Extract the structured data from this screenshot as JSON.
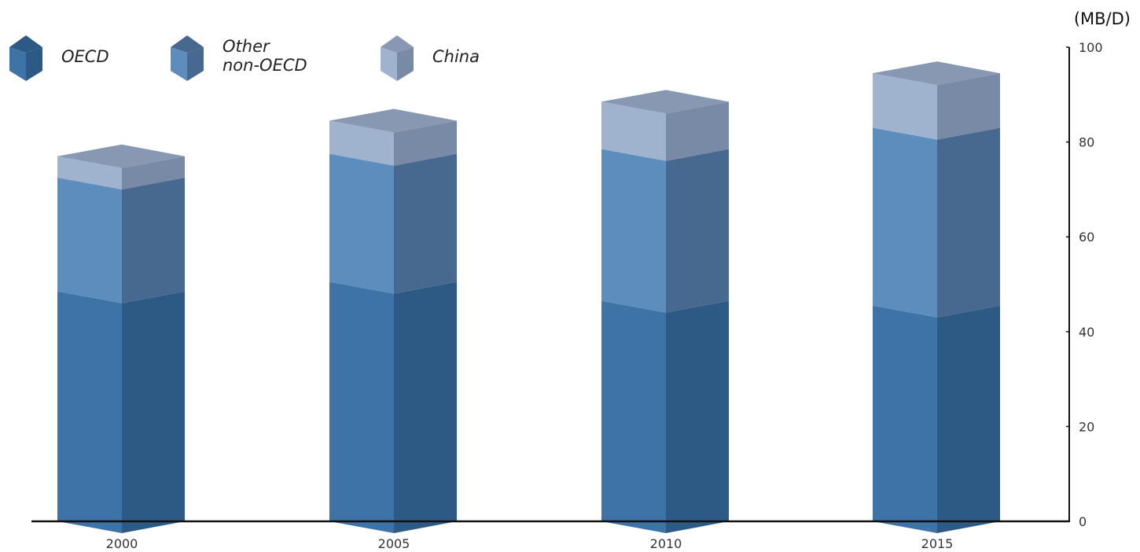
{
  "chart_data": {
    "type": "bar",
    "stacked": true,
    "style": "3d-isometric-columns",
    "categories": [
      "2000",
      "2005",
      "2010",
      "2015"
    ],
    "series": [
      {
        "name": "OECD",
        "values": [
          48.5,
          50.5,
          46.5,
          45.5
        ]
      },
      {
        "name": "Other non-OECD",
        "values": [
          24,
          27,
          32,
          37.5
        ]
      },
      {
        "name": "China",
        "values": [
          4.5,
          7,
          10,
          11.5
        ]
      }
    ],
    "y_unit": "(MB/D)",
    "ylim": [
      0,
      100
    ],
    "yticks": [
      "0",
      "20",
      "40",
      "60",
      "80",
      "100"
    ],
    "y_axis_side": "right",
    "legend_position": "top-left",
    "grid": false,
    "colors": {
      "OECD": {
        "front": "#3d73a6",
        "side": "#2c5a84"
      },
      "Other non-OECD": {
        "front": "#5d8dbd",
        "side": "#48698f"
      },
      "China": {
        "front": "#9fb2ce",
        "side": "#788aa5",
        "top": "#8898b2"
      },
      "axis": "#111111"
    }
  },
  "legend": {
    "items": [
      {
        "icon": "cube-icon",
        "lines": [
          "OECD"
        ]
      },
      {
        "icon": "cube-icon",
        "lines": [
          "Other",
          "non-OECD"
        ]
      },
      {
        "icon": "cube-icon",
        "lines": [
          "China"
        ]
      }
    ]
  }
}
